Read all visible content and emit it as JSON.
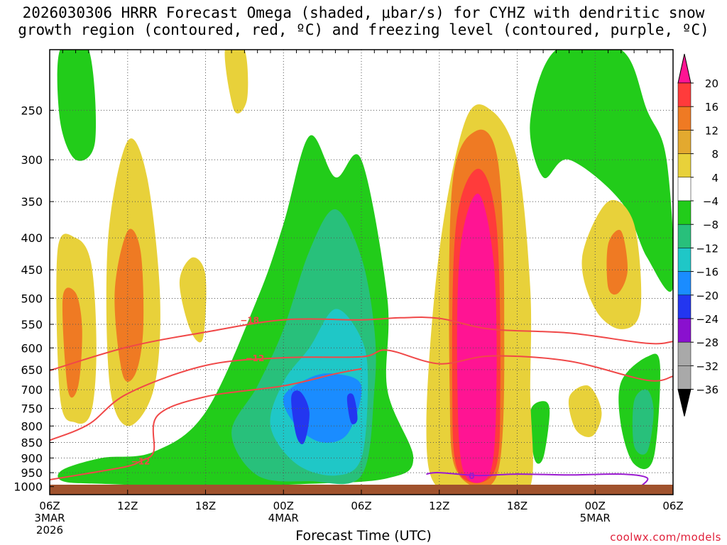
{
  "title": {
    "line1": "2026030306 HRRR Forecast Omega (shaded, μbar/s) for CYHZ with dendritic snow",
    "line2": "growth region (contoured, red, ºC) and freezing level (contoured, purple, ºC)"
  },
  "x_axis_title": "Forecast Time (UTC)",
  "credit": "coolwx.com/models",
  "chart_data": {
    "type": "heatmap",
    "xlabel": "Forecast Time (UTC)",
    "ylabel": "",
    "x_ticks": [
      {
        "label": "06Z",
        "sub1": "3MAR",
        "sub2": "2026",
        "hour": 0
      },
      {
        "label": "12Z",
        "sub1": "",
        "sub2": "",
        "hour": 6
      },
      {
        "label": "18Z",
        "sub1": "",
        "sub2": "",
        "hour": 12
      },
      {
        "label": "00Z",
        "sub1": "4MAR",
        "sub2": "",
        "hour": 18
      },
      {
        "label": "06Z",
        "sub1": "",
        "sub2": "",
        "hour": 24
      },
      {
        "label": "12Z",
        "sub1": "",
        "sub2": "",
        "hour": 30
      },
      {
        "label": "18Z",
        "sub1": "",
        "sub2": "",
        "hour": 36
      },
      {
        "label": "00Z",
        "sub1": "5MAR",
        "sub2": "",
        "hour": 42
      },
      {
        "label": "06Z",
        "sub1": "",
        "sub2": "",
        "hour": 48
      }
    ],
    "xlim": [
      0,
      48
    ],
    "y_ticks": [
      250,
      300,
      350,
      400,
      450,
      500,
      550,
      600,
      650,
      700,
      750,
      800,
      850,
      900,
      950,
      1000
    ],
    "y_scale": "log-pressure (inverted)",
    "ylim": [
      1030,
      200
    ],
    "grid": true,
    "colorbar": {
      "labels": [
        "20",
        "16",
        "12",
        "8",
        "4",
        "−4",
        "−8",
        "−12",
        "−16",
        "−20",
        "−24",
        "−28",
        "−32",
        "−36"
      ],
      "colors": [
        "#ff1493",
        "#ff3b3b",
        "#ef7a23",
        "#e3a92f",
        "#e8d13a",
        "#ffffff",
        "#22cc1a",
        "#28c07b",
        "#1fc7c7",
        "#1a8cff",
        "#2336f0",
        "#8a10cf",
        "#a9a9a9",
        "#000000"
      ],
      "top_color": "#ff1493"
    },
    "colors": {
      "ground": "#a0522d",
      "dgz": "#f04848",
      "freezing": "#9a1ad0"
    },
    "contours": [
      {
        "name": "-18",
        "color": "#f04848",
        "label": "−18",
        "label_at": 15.4,
        "points": [
          [
            0,
            652
          ],
          [
            6,
            598
          ],
          [
            12,
            566
          ],
          [
            18,
            541
          ],
          [
            24,
            541
          ],
          [
            27,
            537
          ],
          [
            30,
            538
          ],
          [
            34,
            560
          ],
          [
            40,
            568
          ],
          [
            46,
            590
          ],
          [
            48,
            586
          ]
        ]
      },
      {
        "name": "-12",
        "color": "#f04848",
        "label": "−12",
        "label_at": 15.8,
        "points": [
          [
            0,
            843
          ],
          [
            3,
            795
          ],
          [
            6,
            710
          ],
          [
            12,
            640
          ],
          [
            18,
            622
          ],
          [
            24,
            620
          ],
          [
            26,
            605
          ],
          [
            30,
            636
          ],
          [
            34,
            618
          ],
          [
            40,
            630
          ],
          [
            46,
            676
          ],
          [
            48,
            666
          ]
        ]
      },
      {
        "name": "-12b",
        "color": "#f04848",
        "label": "−12",
        "label_at": 7.0,
        "points": [
          [
            0,
            975
          ],
          [
            3,
            952
          ],
          [
            6,
            928
          ],
          [
            7,
            910
          ],
          [
            8,
            880
          ],
          [
            8.3,
            770
          ],
          [
            12,
            718
          ],
          [
            18,
            690
          ],
          [
            22,
            660
          ],
          [
            24,
            648
          ]
        ]
      },
      {
        "name": "0",
        "color": "#9a1ad0",
        "label": "0",
        "label_at": 32.5,
        "points": [
          [
            29,
            955
          ],
          [
            30,
            950
          ],
          [
            33,
            960
          ],
          [
            36,
            955
          ],
          [
            40,
            958
          ],
          [
            44,
            955
          ],
          [
            46,
            968
          ],
          [
            45.5,
            1000
          ]
        ]
      }
    ],
    "omega_regions": [
      {
        "color": "#22cc1a",
        "points": [
          [
            1,
            940
          ],
          [
            4,
            900
          ],
          [
            8,
            880
          ],
          [
            12,
            760
          ],
          [
            16,
            500
          ],
          [
            18,
            380
          ],
          [
            20,
            275
          ],
          [
            22,
            320
          ],
          [
            24,
            300
          ],
          [
            26,
            500
          ],
          [
            26,
            700
          ],
          [
            28,
            900
          ],
          [
            26,
            970
          ],
          [
            20,
            990
          ],
          [
            12,
            1000
          ],
          [
            4,
            990
          ],
          [
            1,
            980
          ]
        ]
      },
      {
        "color": "#22cc1a",
        "points": [
          [
            0.8,
            200
          ],
          [
            3,
            200
          ],
          [
            3.5,
            280
          ],
          [
            2,
            300
          ],
          [
            0.8,
            260
          ]
        ]
      },
      {
        "color": "#22cc1a",
        "points": [
          [
            37,
            260
          ],
          [
            39,
            200
          ],
          [
            44,
            200
          ],
          [
            46,
            250
          ],
          [
            47.5,
            300
          ],
          [
            48,
            480
          ],
          [
            46,
            430
          ],
          [
            44,
            350
          ],
          [
            40,
            300
          ],
          [
            38,
            320
          ]
        ]
      },
      {
        "color": "#22cc1a",
        "points": [
          [
            44,
            680
          ],
          [
            46,
            620
          ],
          [
            47,
            640
          ],
          [
            46.5,
            900
          ],
          [
            45,
            920
          ],
          [
            44,
            800
          ]
        ]
      },
      {
        "color": "#22cc1a",
        "points": [
          [
            37,
            760
          ],
          [
            38,
            730
          ],
          [
            38.5,
            760
          ],
          [
            38,
            900
          ],
          [
            37.3,
            900
          ]
        ]
      },
      {
        "color": "#28c07b",
        "points": [
          [
            14,
            820
          ],
          [
            16,
            690
          ],
          [
            18,
            560
          ],
          [
            20,
            420
          ],
          [
            22,
            360
          ],
          [
            24,
            430
          ],
          [
            25,
            560
          ],
          [
            25,
            700
          ],
          [
            24,
            960
          ],
          [
            20,
            980
          ],
          [
            16,
            960
          ]
        ]
      },
      {
        "color": "#28c07b",
        "points": [
          [
            45,
            730
          ],
          [
            46,
            700
          ],
          [
            46.5,
            760
          ],
          [
            46,
            880
          ],
          [
            45,
            860
          ]
        ]
      },
      {
        "color": "#1fc7c7",
        "points": [
          [
            17,
            800
          ],
          [
            18,
            680
          ],
          [
            20,
            600
          ],
          [
            22,
            520
          ],
          [
            24,
            580
          ],
          [
            24.5,
            680
          ],
          [
            24,
            900
          ],
          [
            22,
            960
          ],
          [
            19,
            920
          ]
        ]
      },
      {
        "color": "#1a8cff",
        "points": [
          [
            18,
            720
          ],
          [
            20,
            670
          ],
          [
            22,
            660
          ],
          [
            24,
            690
          ],
          [
            23,
            820
          ],
          [
            21,
            850
          ],
          [
            19,
            800
          ]
        ]
      },
      {
        "color": "#2336f0",
        "points": [
          [
            18.6,
            720
          ],
          [
            19.3,
            705
          ],
          [
            20,
            760
          ],
          [
            19.6,
            850
          ],
          [
            19,
            830
          ]
        ]
      },
      {
        "color": "#2336f0",
        "points": [
          [
            22.9,
            720
          ],
          [
            23.4,
            715
          ],
          [
            23.7,
            780
          ],
          [
            23.2,
            790
          ]
        ]
      },
      {
        "color": "#e8d13a",
        "points": [
          [
            0.6,
            420
          ],
          [
            2,
            400
          ],
          [
            3.2,
            440
          ],
          [
            3.6,
            600
          ],
          [
            3.2,
            760
          ],
          [
            2,
            790
          ],
          [
            0.8,
            720
          ]
        ]
      },
      {
        "color": "#e8d13a",
        "points": [
          [
            4.5,
            400
          ],
          [
            6,
            280
          ],
          [
            7.5,
            320
          ],
          [
            8.5,
            500
          ],
          [
            8,
            700
          ],
          [
            6,
            800
          ],
          [
            4.6,
            680
          ]
        ]
      },
      {
        "color": "#e8d13a",
        "points": [
          [
            10,
            470
          ],
          [
            11,
            430
          ],
          [
            12,
            460
          ],
          [
            11.8,
            580
          ],
          [
            10.8,
            560
          ]
        ]
      },
      {
        "color": "#e8d13a",
        "points": [
          [
            13.5,
            200
          ],
          [
            15,
            200
          ],
          [
            15.2,
            240
          ],
          [
            14.2,
            250
          ]
        ]
      },
      {
        "color": "#e8d13a",
        "points": [
          [
            30,
            420
          ],
          [
            32,
            260
          ],
          [
            34,
            250
          ],
          [
            36,
            300
          ],
          [
            37,
            480
          ],
          [
            37,
            700
          ],
          [
            37,
            1000
          ],
          [
            34,
            1010
          ],
          [
            30,
            1010
          ],
          [
            29,
            800
          ]
        ]
      },
      {
        "color": "#e8d13a",
        "points": [
          [
            41,
            430
          ],
          [
            43,
            350
          ],
          [
            45,
            380
          ],
          [
            45.5,
            520
          ],
          [
            44,
            560
          ],
          [
            42,
            520
          ]
        ]
      },
      {
        "color": "#e8d13a",
        "points": [
          [
            40,
            720
          ],
          [
            41.5,
            690
          ],
          [
            42.5,
            760
          ],
          [
            41.8,
            830
          ],
          [
            40.5,
            810
          ]
        ]
      },
      {
        "color": "#ef7a23",
        "points": [
          [
            1,
            500
          ],
          [
            2,
            490
          ],
          [
            2.5,
            560
          ],
          [
            2.2,
            690
          ],
          [
            1.4,
            700
          ]
        ]
      },
      {
        "color": "#ef7a23",
        "points": [
          [
            5,
            490
          ],
          [
            6,
            390
          ],
          [
            7,
            420
          ],
          [
            7.2,
            560
          ],
          [
            6.6,
            660
          ],
          [
            5.6,
            660
          ]
        ]
      },
      {
        "color": "#ef7a23",
        "points": [
          [
            31,
            330
          ],
          [
            32.8,
            270
          ],
          [
            34.5,
            300
          ],
          [
            35,
            520
          ],
          [
            34.5,
            950
          ],
          [
            31.4,
            950
          ],
          [
            30.8,
            700
          ]
        ]
      },
      {
        "color": "#ef7a23",
        "points": [
          [
            43,
            410
          ],
          [
            44,
            390
          ],
          [
            44.5,
            450
          ],
          [
            43.8,
            490
          ],
          [
            43,
            480
          ]
        ]
      },
      {
        "color": "#ff3b3b",
        "points": [
          [
            31.3,
            380
          ],
          [
            33,
            310
          ],
          [
            34.4,
            380
          ],
          [
            34.7,
            700
          ],
          [
            34.2,
            950
          ],
          [
            31.5,
            950
          ],
          [
            31,
            700
          ]
        ]
      },
      {
        "color": "#ff1493",
        "points": [
          [
            31.6,
            420
          ],
          [
            33,
            340
          ],
          [
            34.2,
            440
          ],
          [
            34.4,
            700
          ],
          [
            33.9,
            950
          ],
          [
            31.9,
            950
          ],
          [
            31.4,
            700
          ]
        ]
      }
    ]
  }
}
